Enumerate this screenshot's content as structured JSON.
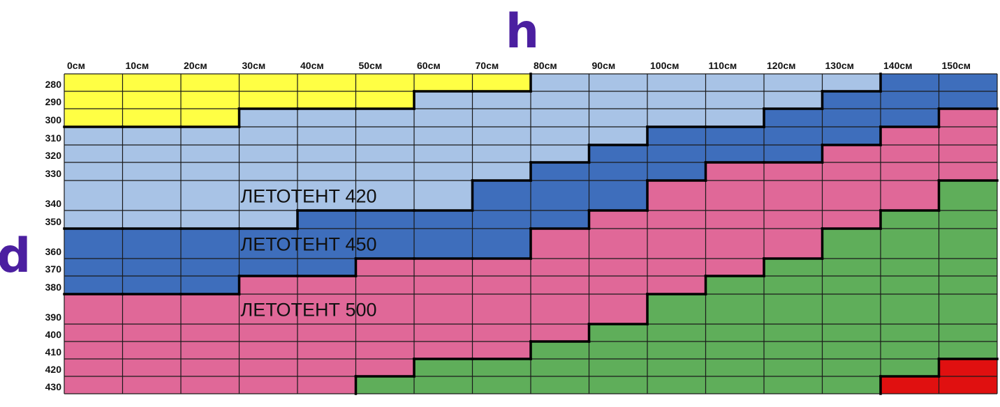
{
  "axis": {
    "h_label": "h",
    "d_label": "d"
  },
  "chart_data": {
    "type": "heatmap",
    "x_label": "h",
    "y_label": "d",
    "columns": [
      "0см",
      "10см",
      "20см",
      "30см",
      "40см",
      "50см",
      "60см",
      "70см",
      "80см",
      "90см",
      "100см",
      "110см",
      "120см",
      "130см",
      "140см",
      "150см"
    ],
    "rows": [
      "280",
      "290",
      "300",
      "310",
      "320",
      "330",
      "340",
      "350",
      "360",
      "370",
      "380",
      "390",
      "400",
      "410",
      "420",
      "430"
    ],
    "categories": [
      {
        "code": "Y",
        "color": "#ffff44"
      },
      {
        "code": "L",
        "name": "ЛЕТОТЕНТ 420",
        "color": "#a8c3e6"
      },
      {
        "code": "B",
        "name": "ЛЕТОТЕНТ 450",
        "color": "#3e6ebc"
      },
      {
        "code": "P",
        "name": "ЛЕТОТЕНТ 500",
        "color": "#e06898"
      },
      {
        "code": "G",
        "color": "#5fae5a"
      },
      {
        "code": "R",
        "color": "#e01010"
      }
    ],
    "grid": [
      [
        "Y",
        "Y",
        "Y",
        "Y",
        "Y",
        "Y",
        "Y",
        "Y",
        "L",
        "L",
        "L",
        "L",
        "L",
        "L",
        "B",
        "B"
      ],
      [
        "Y",
        "Y",
        "Y",
        "Y",
        "Y",
        "Y",
        "L",
        "L",
        "L",
        "L",
        "L",
        "L",
        "L",
        "B",
        "B",
        "B"
      ],
      [
        "Y",
        "Y",
        "Y",
        "L",
        "L",
        "L",
        "L",
        "L",
        "L",
        "L",
        "L",
        "L",
        "B",
        "B",
        "B",
        "P"
      ],
      [
        "L",
        "L",
        "L",
        "L",
        "L",
        "L",
        "L",
        "L",
        "L",
        "L",
        "B",
        "B",
        "B",
        "B",
        "P",
        "P"
      ],
      [
        "L",
        "L",
        "L",
        "L",
        "L",
        "L",
        "L",
        "L",
        "L",
        "B",
        "B",
        "B",
        "B",
        "P",
        "P",
        "P"
      ],
      [
        "L",
        "L",
        "L",
        "L",
        "L",
        "L",
        "L",
        "L",
        "B",
        "B",
        "B",
        "P",
        "P",
        "P",
        "P",
        "P"
      ],
      [
        "L",
        "L",
        "L",
        "L",
        "L",
        "L",
        "L",
        "B",
        "B",
        "B",
        "P",
        "P",
        "P",
        "P",
        "P",
        "G"
      ],
      [
        "L",
        "L",
        "L",
        "L",
        "B",
        "B",
        "B",
        "B",
        "B",
        "P",
        "P",
        "P",
        "P",
        "P",
        "G",
        "G"
      ],
      [
        "B",
        "B",
        "B",
        "B",
        "B",
        "B",
        "B",
        "B",
        "P",
        "P",
        "P",
        "P",
        "P",
        "G",
        "G",
        "G"
      ],
      [
        "B",
        "B",
        "B",
        "B",
        "B",
        "P",
        "P",
        "P",
        "P",
        "P",
        "P",
        "P",
        "G",
        "G",
        "G",
        "G"
      ],
      [
        "B",
        "B",
        "B",
        "P",
        "P",
        "P",
        "P",
        "P",
        "P",
        "P",
        "P",
        "G",
        "G",
        "G",
        "G",
        "G"
      ],
      [
        "P",
        "P",
        "P",
        "P",
        "P",
        "P",
        "P",
        "P",
        "P",
        "P",
        "G",
        "G",
        "G",
        "G",
        "G",
        "G"
      ],
      [
        "P",
        "P",
        "P",
        "P",
        "P",
        "P",
        "P",
        "P",
        "P",
        "G",
        "G",
        "G",
        "G",
        "G",
        "G",
        "G"
      ],
      [
        "P",
        "P",
        "P",
        "P",
        "P",
        "P",
        "P",
        "P",
        "G",
        "G",
        "G",
        "G",
        "G",
        "G",
        "G",
        "G"
      ],
      [
        "P",
        "P",
        "P",
        "P",
        "P",
        "P",
        "G",
        "G",
        "G",
        "G",
        "G",
        "G",
        "G",
        "G",
        "G",
        "R"
      ],
      [
        "P",
        "P",
        "P",
        "P",
        "P",
        "G",
        "G",
        "G",
        "G",
        "G",
        "G",
        "G",
        "G",
        "G",
        "R",
        "R"
      ]
    ],
    "region_labels": [
      {
        "text": "ЛЕТОТЕНТ 420",
        "row": "340",
        "column": "30см"
      },
      {
        "text": "ЛЕТОТЕНТ 450",
        "row": "360",
        "column": "30см"
      },
      {
        "text": "ЛЕТОТЕНТ 500",
        "row": "390",
        "column": "30см"
      }
    ]
  }
}
